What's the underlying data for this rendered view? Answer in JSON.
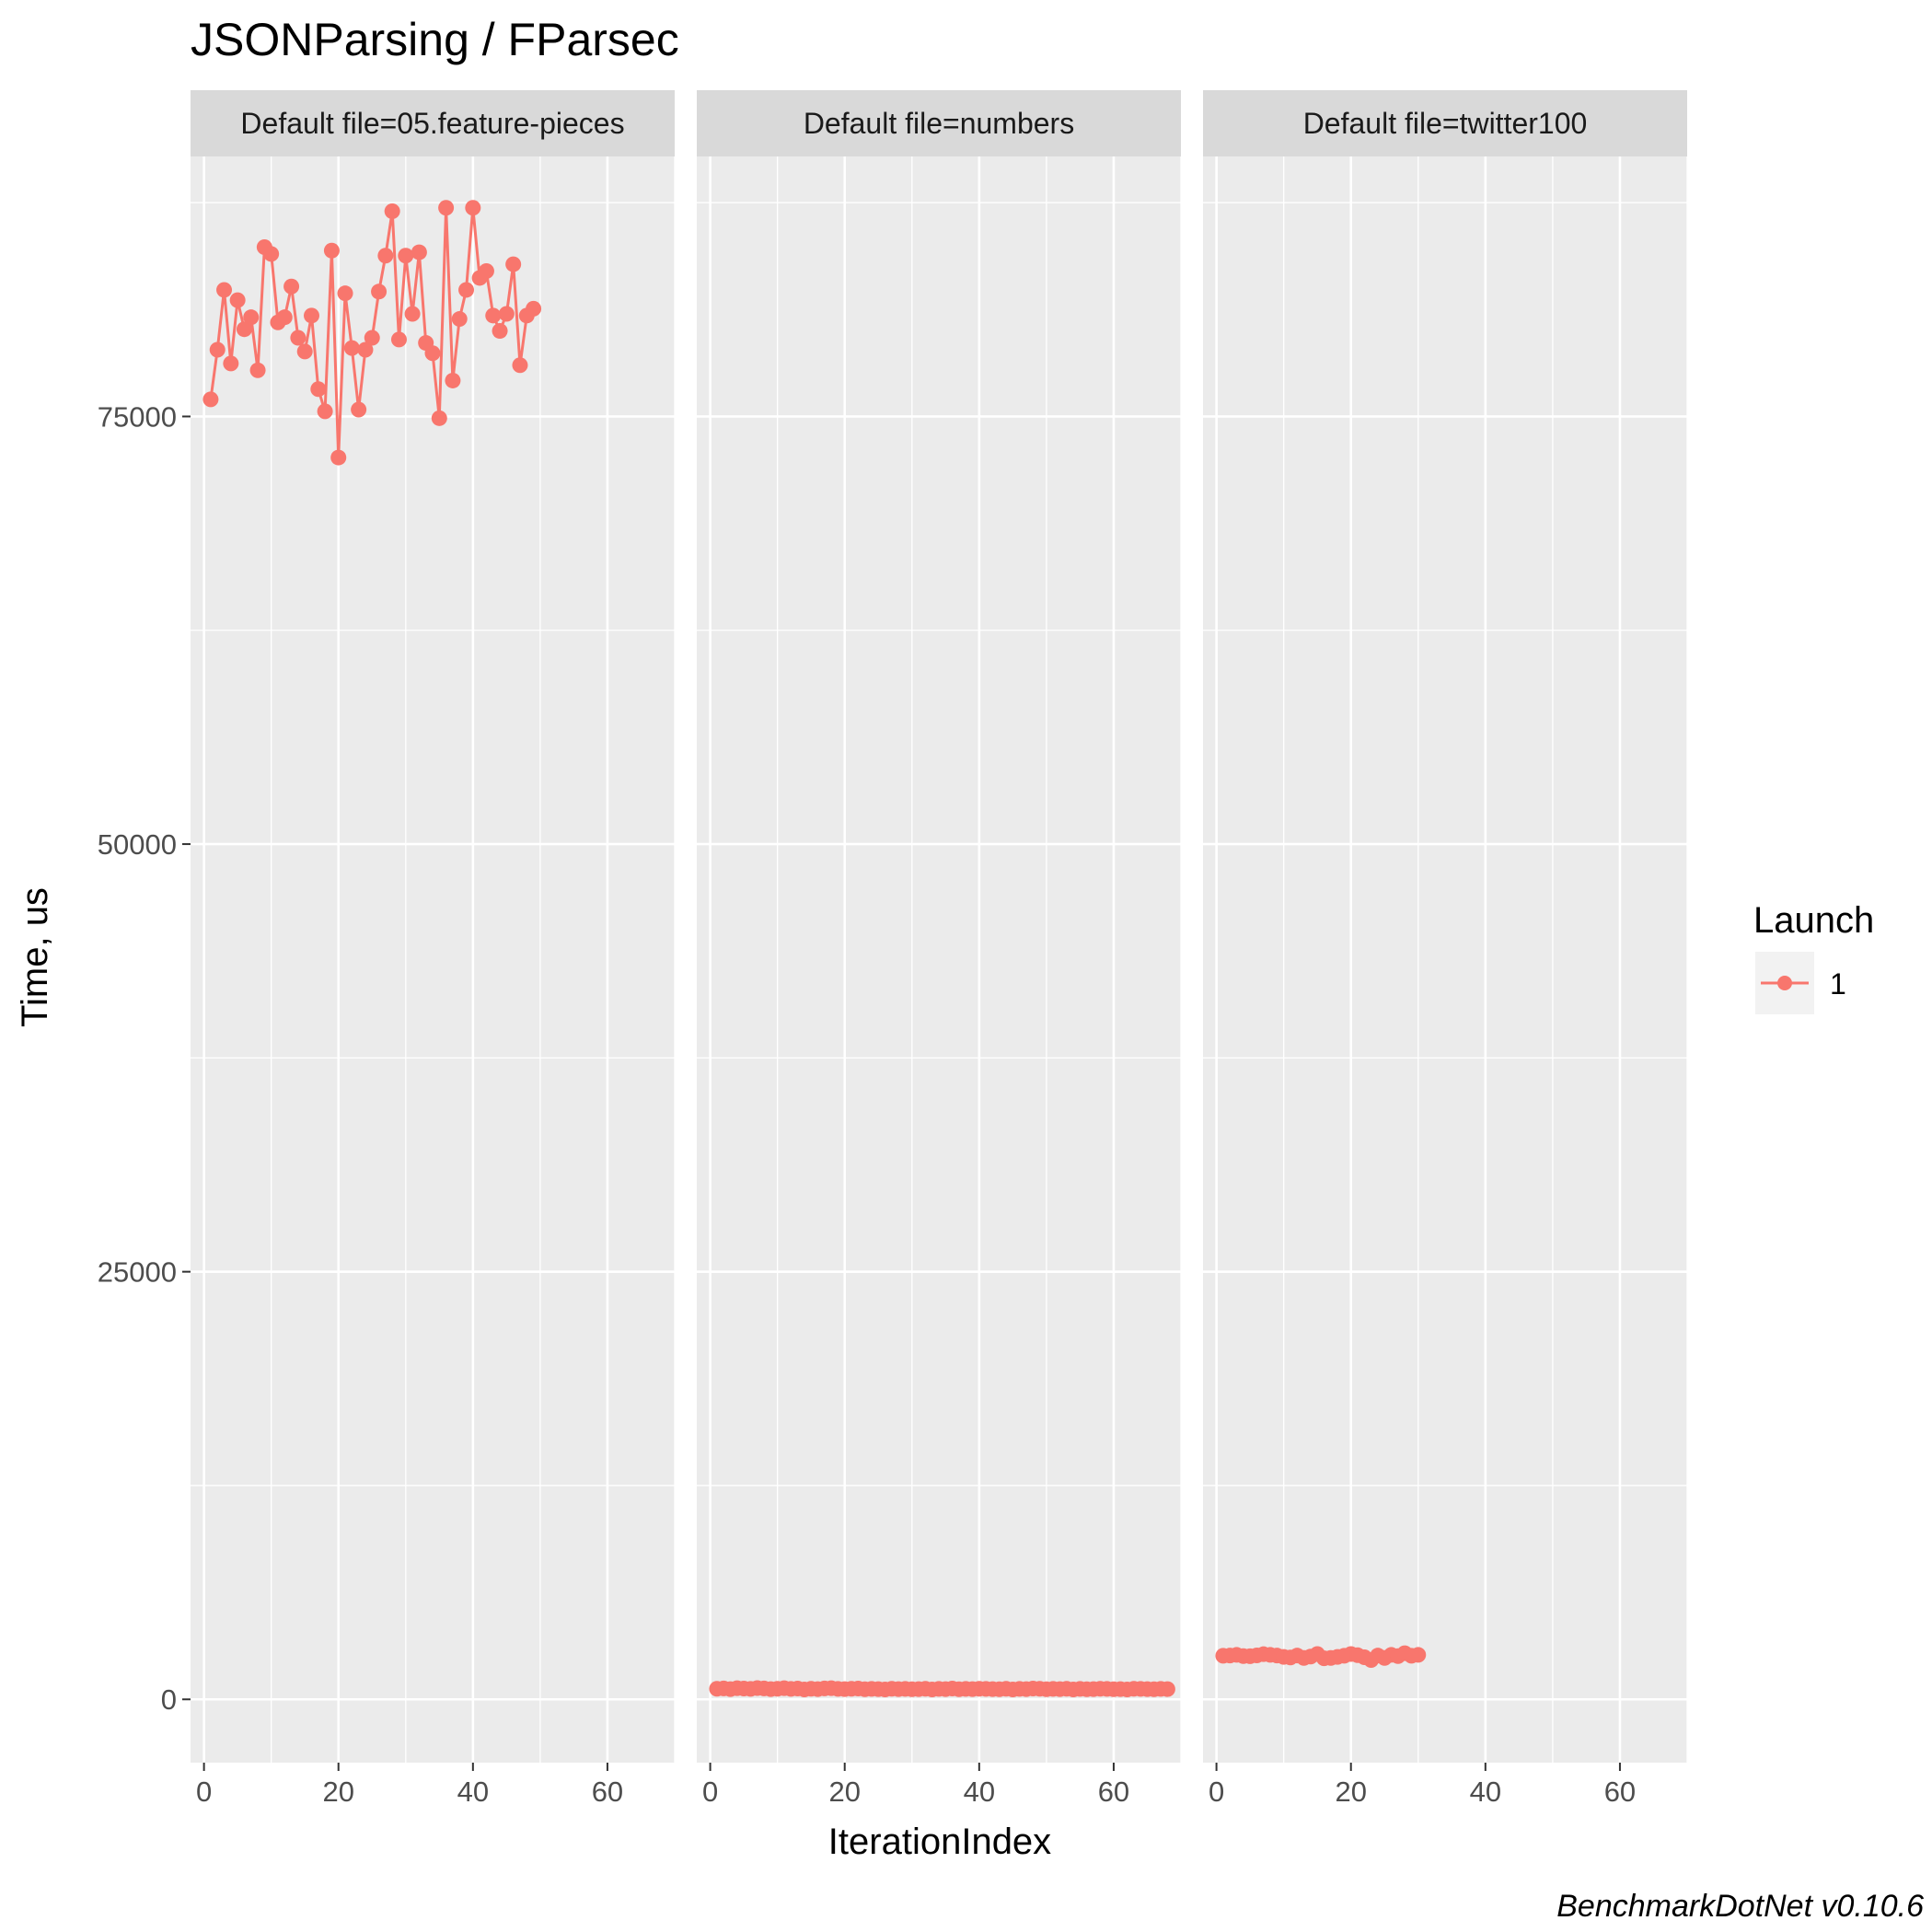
{
  "chart_data": {
    "type": "line",
    "title": "JSONParsing / FParsec",
    "xlabel": "IterationIndex",
    "ylabel": "Time, us",
    "xlim": [
      -2,
      70
    ],
    "ylim": [
      -3700,
      90200
    ],
    "x_ticks": [
      0,
      20,
      40,
      60
    ],
    "y_ticks": [
      0,
      25000,
      50000,
      75000
    ],
    "y_tick_labels": [
      "0",
      "25000",
      "50000",
      "75000"
    ],
    "x_tick_labels": [
      "0",
      "20",
      "40",
      "60"
    ],
    "grid": true,
    "legend": {
      "title": "Launch",
      "position": "right",
      "entries": [
        "1"
      ]
    },
    "color": "#F8766D",
    "caption": "BenchmarkDotNet v0.10.6",
    "panels": [
      {
        "strip": "Default file=05.feature-pieces",
        "series": [
          {
            "name": "1",
            "x": [
              1,
              2,
              3,
              4,
              5,
              6,
              7,
              8,
              9,
              10,
              11,
              12,
              13,
              14,
              15,
              16,
              17,
              18,
              19,
              20,
              21,
              22,
              23,
              24,
              25,
              26,
              27,
              28,
              29,
              30,
              31,
              32,
              33,
              34,
              35,
              36,
              37,
              38,
              39,
              40,
              41,
              42,
              43,
              44,
              45,
              46,
              47,
              48,
              49
            ],
            "y": [
              76000,
              78900,
              82400,
              78100,
              81800,
              80100,
              80800,
              77700,
              84900,
              84500,
              80500,
              80800,
              82600,
              79600,
              78800,
              80900,
              76600,
              75300,
              84700,
              72600,
              82200,
              79000,
              75400,
              78900,
              79600,
              82300,
              84400,
              87000,
              79500,
              84400,
              81000,
              84600,
              79300,
              78700,
              74900,
              87200,
              77100,
              80700,
              82400,
              87200,
              83100,
              83500,
              80900,
              80000,
              81000,
              83900,
              78000,
              80900,
              81300
            ]
          }
        ]
      },
      {
        "strip": "Default file=numbers",
        "series": [
          {
            "name": "1",
            "x": [
              1,
              2,
              3,
              4,
              5,
              6,
              7,
              8,
              9,
              10,
              11,
              12,
              13,
              14,
              15,
              16,
              17,
              18,
              19,
              20,
              21,
              22,
              23,
              24,
              25,
              26,
              27,
              28,
              29,
              30,
              31,
              32,
              33,
              34,
              35,
              36,
              37,
              38,
              39,
              40,
              41,
              42,
              43,
              44,
              45,
              46,
              47,
              48,
              49,
              50,
              51,
              52,
              53,
              54,
              55,
              56,
              57,
              58,
              59,
              60,
              61,
              62,
              63,
              64,
              65,
              66,
              67,
              68
            ],
            "y": [
              620,
              640,
              600,
              650,
              630,
              610,
              660,
              640,
              600,
              620,
              650,
              610,
              630,
              580,
              620,
              600,
              640,
              650,
              610,
              600,
              620,
              630,
              590,
              610,
              600,
              580,
              620,
              600,
              610,
              590,
              600,
              620,
              580,
              610,
              600,
              630,
              590,
              610,
              600,
              620,
              610,
              600,
              590,
              620,
              580,
              610,
              600,
              630,
              620,
              590,
              610,
              600,
              620,
              580,
              610,
              590,
              600,
              620,
              610,
              590,
              600,
              580,
              620,
              610,
              600,
              590,
              610,
              600
            ]
          }
        ]
      },
      {
        "strip": "Default file=twitter100",
        "series": [
          {
            "name": "1",
            "x": [
              1,
              2,
              3,
              4,
              5,
              6,
              7,
              8,
              9,
              10,
              11,
              12,
              13,
              14,
              15,
              16,
              17,
              18,
              19,
              20,
              21,
              22,
              23,
              24,
              25,
              26,
              27,
              28,
              29,
              30
            ],
            "y": [
              2550,
              2560,
              2600,
              2530,
              2520,
              2570,
              2640,
              2600,
              2560,
              2480,
              2450,
              2560,
              2420,
              2500,
              2650,
              2400,
              2420,
              2480,
              2550,
              2650,
              2580,
              2460,
              2300,
              2560,
              2420,
              2600,
              2530,
              2700,
              2550,
              2600
            ]
          }
        ]
      }
    ]
  }
}
